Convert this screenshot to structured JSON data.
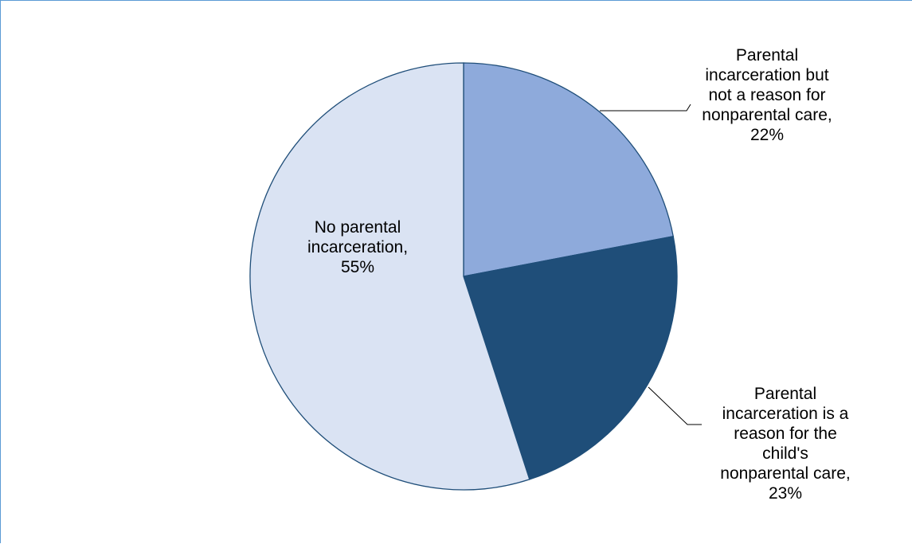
{
  "chart_data": {
    "type": "pie",
    "title": "",
    "start_angle_deg": 0,
    "direction": "clockwise",
    "slices": [
      {
        "label": "Parental incarceration but not a reason for nonparental care",
        "value": 22,
        "display": "Parental\nincarceration but\nnot a reason for\nnonparental care,\n22%",
        "color": "#8eaadb"
      },
      {
        "label": "Parental incarceration is a reason for the child's nonparental care",
        "value": 23,
        "display": "Parental\nincarceration is a\nreason for the\nchild's\nnonparental care,\n23%",
        "color": "#1f4e79"
      },
      {
        "label": "No parental incarceration",
        "value": 55,
        "display": "No parental\nincarceration,\n55%",
        "color": "#dae3f3"
      }
    ]
  },
  "colors": {
    "frame_border": "#5b9bd5",
    "slice_outline": "#1f4e79",
    "leader_line": "#000000"
  }
}
